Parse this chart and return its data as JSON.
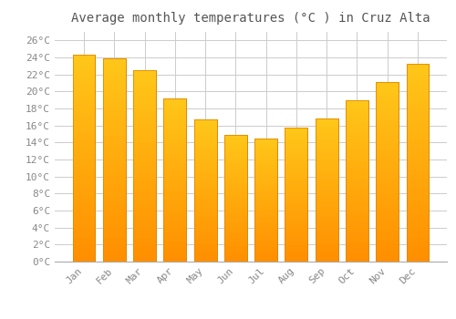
{
  "months": [
    "Jan",
    "Feb",
    "Mar",
    "Apr",
    "May",
    "Jun",
    "Jul",
    "Aug",
    "Sep",
    "Oct",
    "Nov",
    "Dec"
  ],
  "temperatures": [
    24.3,
    23.9,
    22.5,
    19.2,
    16.7,
    14.9,
    14.5,
    15.7,
    16.8,
    19.0,
    21.1,
    23.2
  ],
  "bar_color_top": "#FFC020",
  "bar_color_bottom": "#FF9000",
  "bar_edge_color": "#E08800",
  "title": "Average monthly temperatures (°C ) in Cruz Alta",
  "ylim_max": 27,
  "ytick_step": 2,
  "background_color": "#FFFFFF",
  "grid_color": "#CCCCCC",
  "title_fontsize": 10,
  "tick_fontsize": 8,
  "title_color": "#555555",
  "tick_color": "#888888"
}
